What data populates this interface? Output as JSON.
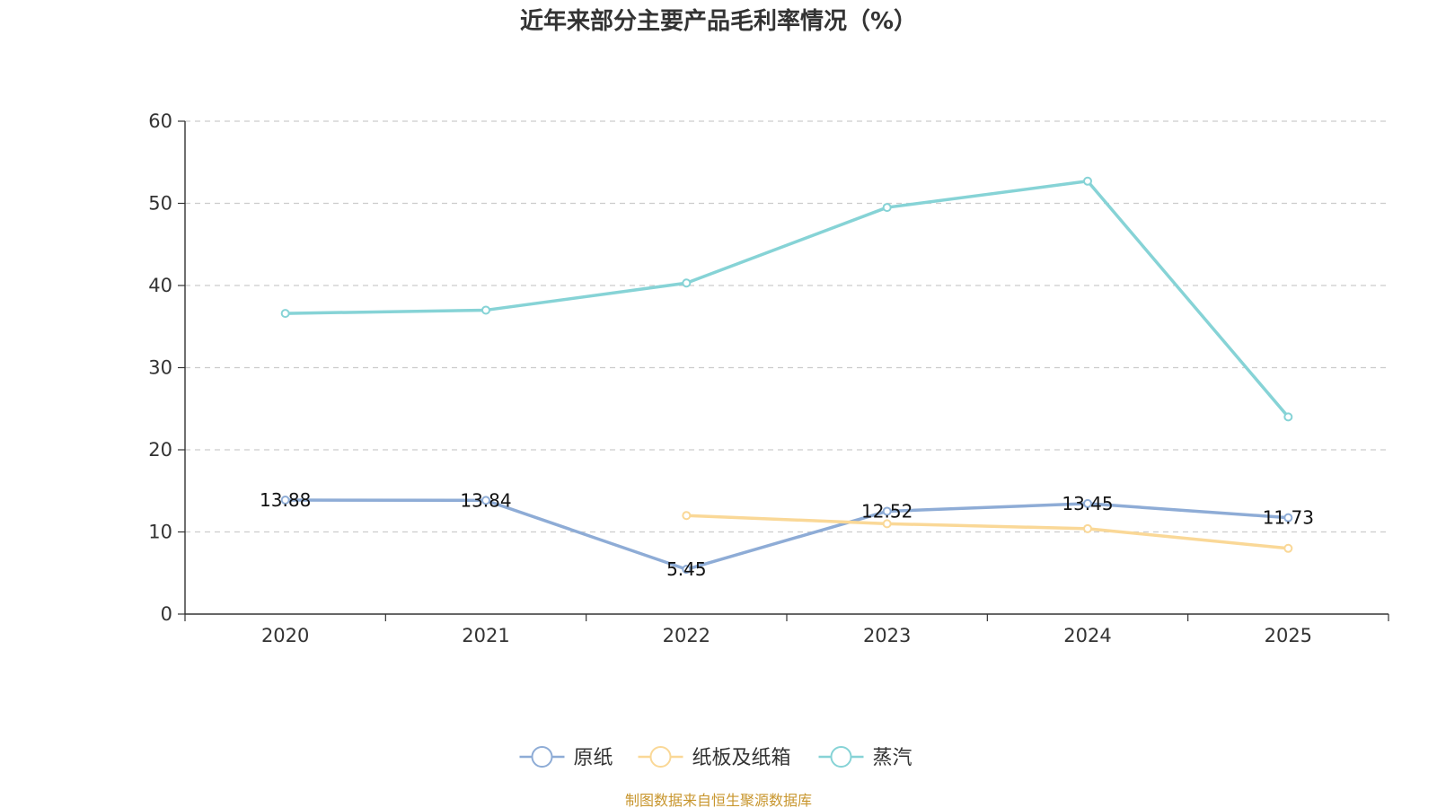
{
  "chart_data": {
    "type": "line",
    "title": "近年来部分主要产品毛利率情况（%）",
    "categories": [
      "2020",
      "2021",
      "2022",
      "2023",
      "2024",
      "2025"
    ],
    "ylim": [
      0,
      60
    ],
    "yticks": [
      0,
      10,
      20,
      30,
      40,
      50,
      60
    ],
    "grid": true,
    "legend_position": "bottom",
    "series": [
      {
        "name": "原纸",
        "color": "#8eacd6",
        "values": [
          13.88,
          13.84,
          5.45,
          12.52,
          13.45,
          11.73
        ],
        "labels": [
          "13.88",
          "13.84",
          "5.45",
          "12.52",
          "13.45",
          "11.73"
        ]
      },
      {
        "name": "纸板及纸箱",
        "color": "#fad897",
        "values": [
          null,
          null,
          12.0,
          11.0,
          10.4,
          8.0
        ],
        "labels": []
      },
      {
        "name": "蒸汽",
        "color": "#86d3d6",
        "values": [
          36.6,
          37.0,
          40.3,
          49.5,
          52.7,
          24.0
        ],
        "labels": []
      }
    ]
  },
  "source": {
    "text": "制图数据来自恒生聚源数据库",
    "color": "#c8962e"
  }
}
